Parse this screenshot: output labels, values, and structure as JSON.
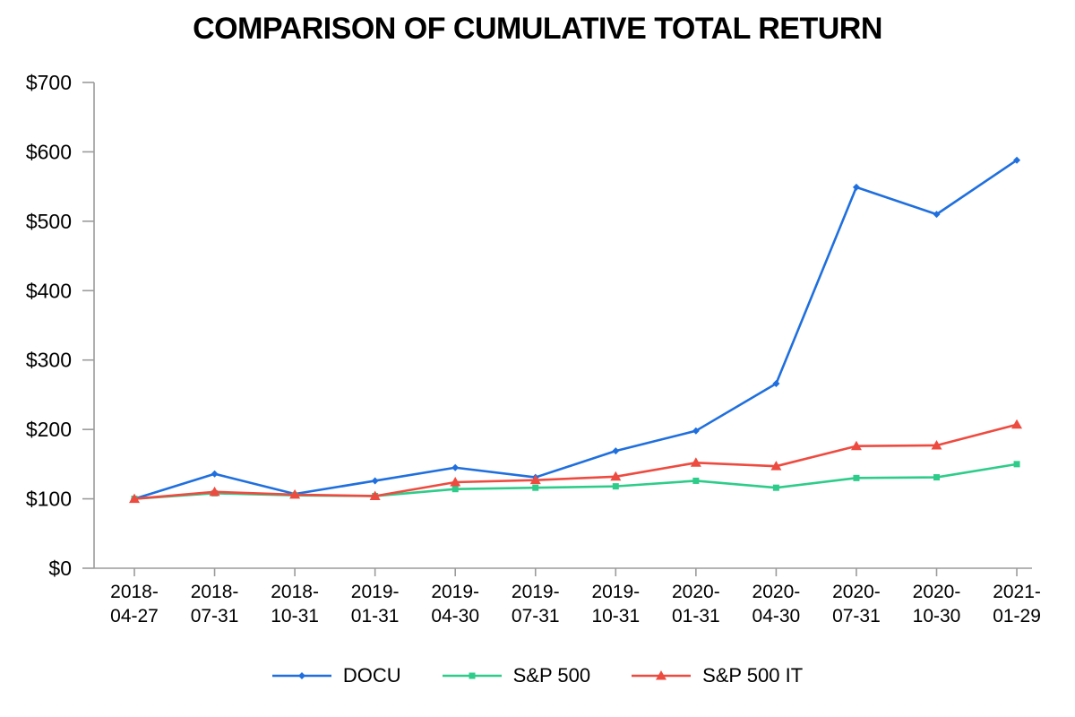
{
  "chart_data": {
    "type": "line",
    "title": "COMPARISON OF CUMULATIVE TOTAL RETURN",
    "xlabel": "",
    "ylabel": "",
    "ylim": [
      0,
      700
    ],
    "grid": false,
    "legend_position": "bottom",
    "axis_color": "#9b9b9b",
    "text_color": "#000000",
    "y_ticks": [
      {
        "value": 0,
        "label": "$0"
      },
      {
        "value": 100,
        "label": "$100"
      },
      {
        "value": 200,
        "label": "$200"
      },
      {
        "value": 300,
        "label": "$300"
      },
      {
        "value": 400,
        "label": "$400"
      },
      {
        "value": 500,
        "label": "$500"
      },
      {
        "value": 600,
        "label": "$600"
      },
      {
        "value": 700,
        "label": "$700"
      }
    ],
    "categories": [
      "2018-04-27",
      "2018-07-31",
      "2018-10-31",
      "2019-01-31",
      "2019-04-30",
      "2019-07-31",
      "2019-10-31",
      "2020-01-31",
      "2020-04-30",
      "2020-07-31",
      "2020-10-30",
      "2021-01-29"
    ],
    "x_tick_lines": [
      [
        "2018-",
        "04-27"
      ],
      [
        "2018-",
        "07-31"
      ],
      [
        "2018-",
        "10-31"
      ],
      [
        "2019-",
        "01-31"
      ],
      [
        "2019-",
        "04-30"
      ],
      [
        "2019-",
        "07-31"
      ],
      [
        "2019-",
        "10-31"
      ],
      [
        "2020-",
        "01-31"
      ],
      [
        "2020-",
        "04-30"
      ],
      [
        "2020-",
        "07-31"
      ],
      [
        "2020-",
        "10-30"
      ],
      [
        "2021-",
        "01-29"
      ]
    ],
    "series": [
      {
        "name": "DOCU",
        "color": "#1f6fde",
        "marker": "diamond",
        "values": [
          100,
          136,
          107,
          126,
          145,
          131,
          169,
          198,
          266,
          549,
          510,
          588
        ]
      },
      {
        "name": "S&P 500",
        "color": "#2ecc8a",
        "marker": "square",
        "values": [
          100,
          108,
          105,
          104,
          114,
          116,
          118,
          126,
          116,
          130,
          131,
          150
        ]
      },
      {
        "name": "S&P 500 IT",
        "color": "#ee4b40",
        "marker": "triangle",
        "values": [
          100,
          110,
          106,
          104,
          124,
          127,
          132,
          152,
          147,
          176,
          177,
          207
        ]
      }
    ]
  }
}
